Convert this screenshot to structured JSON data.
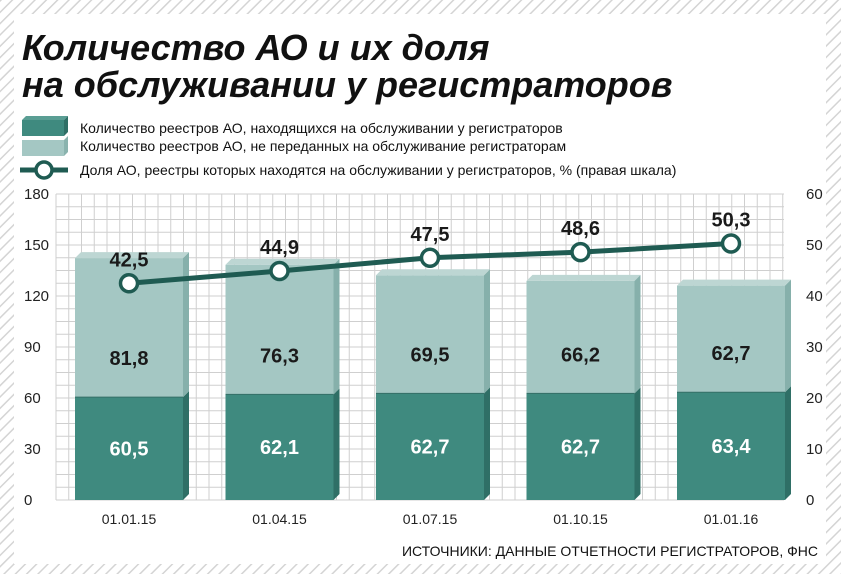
{
  "title_line1": "Количество АО и их доля",
  "title_line2": "на обслуживании у регистраторов",
  "legend": [
    {
      "label": "Количество реестров АО, находящихся на обслуживании у регистраторов",
      "color": "#3f8a7f",
      "kind": "bar"
    },
    {
      "label": "Количество реестров АО, не переданных на обслуживание регистраторам",
      "color": "#a4c7c3",
      "kind": "bar"
    },
    {
      "label": "Доля АО, реестры которых находятся на обслуживании у регистраторов, % (правая шкала)",
      "color": "#1f5b52",
      "kind": "line"
    }
  ],
  "source": "ИСТОЧНИКИ: ДАННЫЕ ОТЧЕТНОСТИ РЕГИСТРАТОРОВ, ФНС",
  "chart_data": {
    "type": "bar",
    "stacked": true,
    "categories": [
      "01.01.15",
      "01.04.15",
      "01.07.15",
      "01.10.15",
      "01.01.16"
    ],
    "series": [
      {
        "name": "Количество реестров АО, находящихся на обслуживании у регистраторов",
        "values": [
          60.5,
          62.1,
          62.7,
          62.7,
          63.4
        ],
        "labels": [
          "60,5",
          "62,1",
          "62,7",
          "62,7",
          "63,4"
        ],
        "color": "#3f8a7f",
        "label_color": "#ffffff"
      },
      {
        "name": "Количество реестров АО, не переданных на обслуживание регистраторам",
        "values": [
          81.8,
          76.3,
          69.5,
          66.2,
          62.7
        ],
        "labels": [
          "81,8",
          "76,3",
          "69,5",
          "66,2",
          "62,7"
        ],
        "color": "#a4c7c3",
        "label_color": "#1a1a1a"
      }
    ],
    "line": {
      "name": "Доля АО, реестры которых находятся на обслуживании у регистраторов, % (правая шкала)",
      "values": [
        42.5,
        44.9,
        47.5,
        48.6,
        50.3
      ],
      "labels": [
        "42,5",
        "44,9",
        "47,5",
        "48,6",
        "50,3"
      ],
      "color": "#1f5b52"
    },
    "y_left": {
      "min": 0,
      "max": 180,
      "ticks": [
        "0",
        "30",
        "60",
        "90",
        "120",
        "150",
        "180"
      ]
    },
    "y_right": {
      "min": 0,
      "max": 60,
      "ticks": [
        "0",
        "10",
        "20",
        "30",
        "40",
        "50",
        "60"
      ]
    },
    "grid": true,
    "legend_position": "top-left"
  }
}
